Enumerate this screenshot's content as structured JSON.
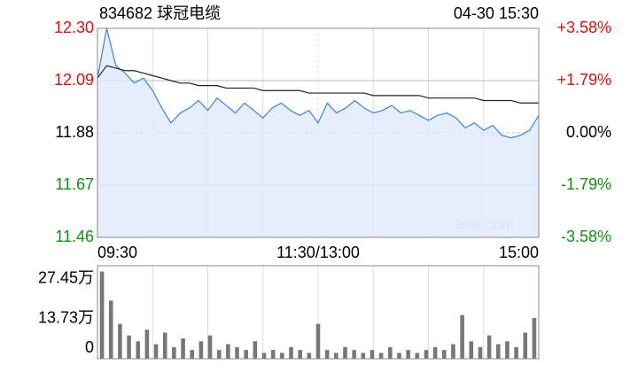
{
  "chart_data": [
    {
      "type": "line",
      "title": "834682 球冠电缆",
      "subtitle": "04-30 15:30",
      "watermark": "sina.com",
      "categories": [
        "09:30",
        null,
        null,
        null,
        null,
        null,
        null,
        null,
        null,
        null,
        null,
        null,
        null,
        null,
        null,
        null,
        null,
        null,
        null,
        null,
        null,
        null,
        null,
        null,
        "11:30/13:00",
        null,
        null,
        null,
        null,
        null,
        null,
        null,
        null,
        null,
        null,
        null,
        null,
        null,
        null,
        null,
        null,
        null,
        null,
        null,
        null,
        null,
        null,
        null,
        "15:00"
      ],
      "ylim": [
        11.46,
        12.3
      ],
      "yticks": [
        {
          "value": 12.3,
          "label": "12.30"
        },
        12.09,
        11.88,
        11.67,
        11.46
      ],
      "ytick_colors": [
        "#e01010",
        "#e01010",
        "#000000",
        "#109010",
        "#109010"
      ],
      "y2lim": [
        -3.58,
        3.58
      ],
      "y2ticks": [
        {
          "value": 3.58,
          "label": "+3.58%"
        },
        {
          "value": 1.79,
          "label": "+1.79%"
        },
        {
          "value": 0,
          "label": "0.00%"
        },
        {
          "value": -1.79,
          "label": "-1.79%"
        },
        {
          "value": -3.58,
          "label": "-3.58%"
        }
      ],
      "series": [
        {
          "color": "#3f7fe0",
          "fill": "#dfeafc",
          "values": [
            12.1,
            12.3,
            12.15,
            12.12,
            12.08,
            12.1,
            12.05,
            11.98,
            11.92,
            11.96,
            11.98,
            12.01,
            11.97,
            12.02,
            11.99,
            11.96,
            12.0,
            11.97,
            11.94,
            11.98,
            12.0,
            11.97,
            11.95,
            11.97,
            11.92,
            12.0,
            11.96,
            11.98,
            12.01,
            11.98,
            11.96,
            11.97,
            11.99,
            11.96,
            11.97,
            11.95,
            11.93,
            11.95,
            11.96,
            11.94,
            11.9,
            11.92,
            11.89,
            11.91,
            11.87,
            11.86,
            11.87,
            11.89,
            11.95
          ]
        },
        {
          "color": "#222222",
          "values": [
            12.1,
            12.15,
            12.14,
            12.13,
            12.13,
            12.12,
            12.11,
            12.1,
            12.09,
            12.08,
            12.08,
            12.07,
            12.07,
            12.07,
            12.06,
            12.06,
            12.06,
            12.06,
            12.05,
            12.05,
            12.05,
            12.05,
            12.05,
            12.04,
            12.04,
            12.04,
            12.04,
            12.04,
            12.04,
            12.04,
            12.03,
            12.03,
            12.03,
            12.03,
            12.03,
            12.03,
            12.02,
            12.02,
            12.02,
            12.02,
            12.02,
            12.02,
            12.01,
            12.01,
            12.01,
            12.01,
            12.0,
            12.0,
            12.0
          ]
        }
      ]
    },
    {
      "type": "bar",
      "color": "#777777",
      "ylim": [
        0,
        32
      ],
      "yticks": [
        {
          "value": 27.45,
          "label": "27.45万"
        },
        {
          "value": 13.73,
          "label": "13.73万"
        },
        0
      ],
      "values": [
        30,
        20,
        12,
        8,
        6,
        10,
        5,
        9,
        4,
        7,
        3,
        6,
        8,
        3,
        5,
        4,
        3,
        6,
        2,
        3,
        2,
        4,
        3,
        2,
        12,
        3,
        2,
        4,
        3,
        2,
        3,
        2,
        4,
        2,
        3,
        2,
        3,
        4,
        3,
        5,
        15,
        6,
        4,
        8,
        5,
        6,
        4,
        9,
        14
      ]
    }
  ]
}
